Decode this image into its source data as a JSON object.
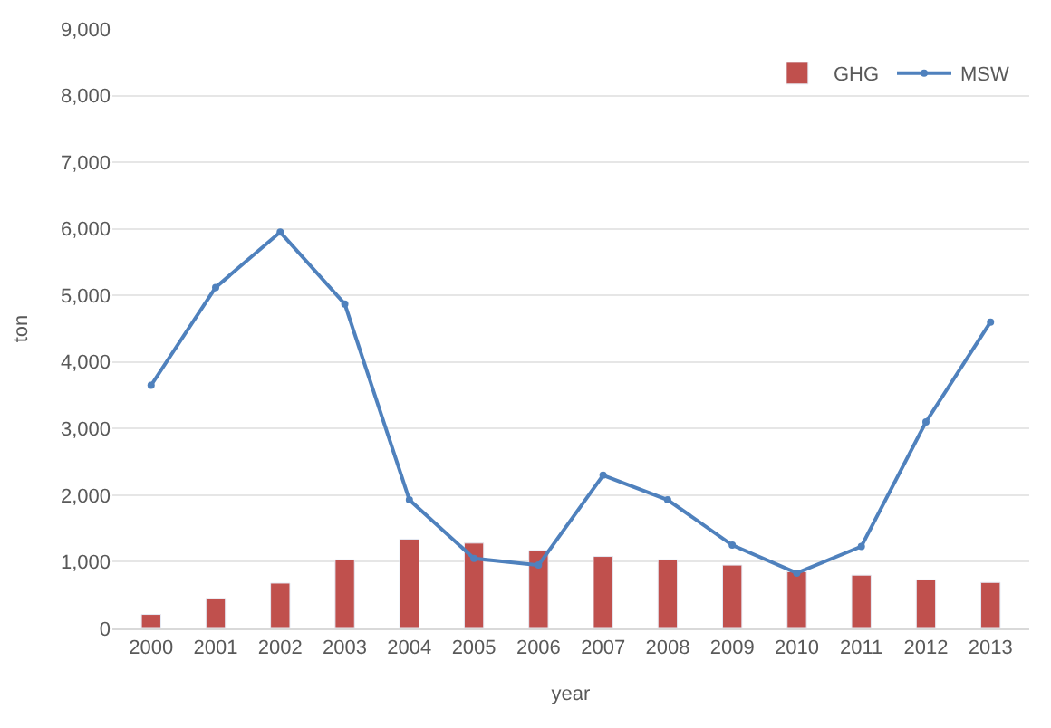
{
  "chart_data": {
    "type": "bar",
    "xlabel": "year",
    "ylabel": "ton",
    "categories": [
      "2000",
      "2001",
      "2002",
      "2003",
      "2004",
      "2005",
      "2006",
      "2007",
      "2008",
      "2009",
      "2010",
      "2011",
      "2012",
      "2013"
    ],
    "series": [
      {
        "name": "GHG",
        "color": "#c0504d",
        "values": [
          210,
          450,
          680,
          1030,
          1340,
          1280,
          1170,
          1080,
          1030,
          950,
          850,
          800,
          730,
          690
        ]
      },
      {
        "name": "MSW",
        "type": "line",
        "color": "#4f81bd",
        "marker": "circle",
        "values": [
          3650,
          5120,
          5950,
          4870,
          1930,
          1050,
          950,
          2300,
          1930,
          1250,
          830,
          1230,
          3100,
          4600
        ]
      }
    ],
    "ylim": [
      0,
      9000
    ],
    "yticks": [
      {
        "value": 0,
        "label": "0"
      },
      {
        "value": 1000,
        "label": "1,000"
      },
      {
        "value": 2000,
        "label": "2,000"
      },
      {
        "value": 3000,
        "label": "3,000"
      },
      {
        "value": 4000,
        "label": "4,000"
      },
      {
        "value": 5000,
        "label": "5,000"
      },
      {
        "value": 6000,
        "label": "6,000"
      },
      {
        "value": 7000,
        "label": "7,000"
      },
      {
        "value": 8000,
        "label": "8,000"
      },
      {
        "value": 9000,
        "label": "9,000"
      }
    ],
    "grid": "y",
    "legend": "top right"
  }
}
